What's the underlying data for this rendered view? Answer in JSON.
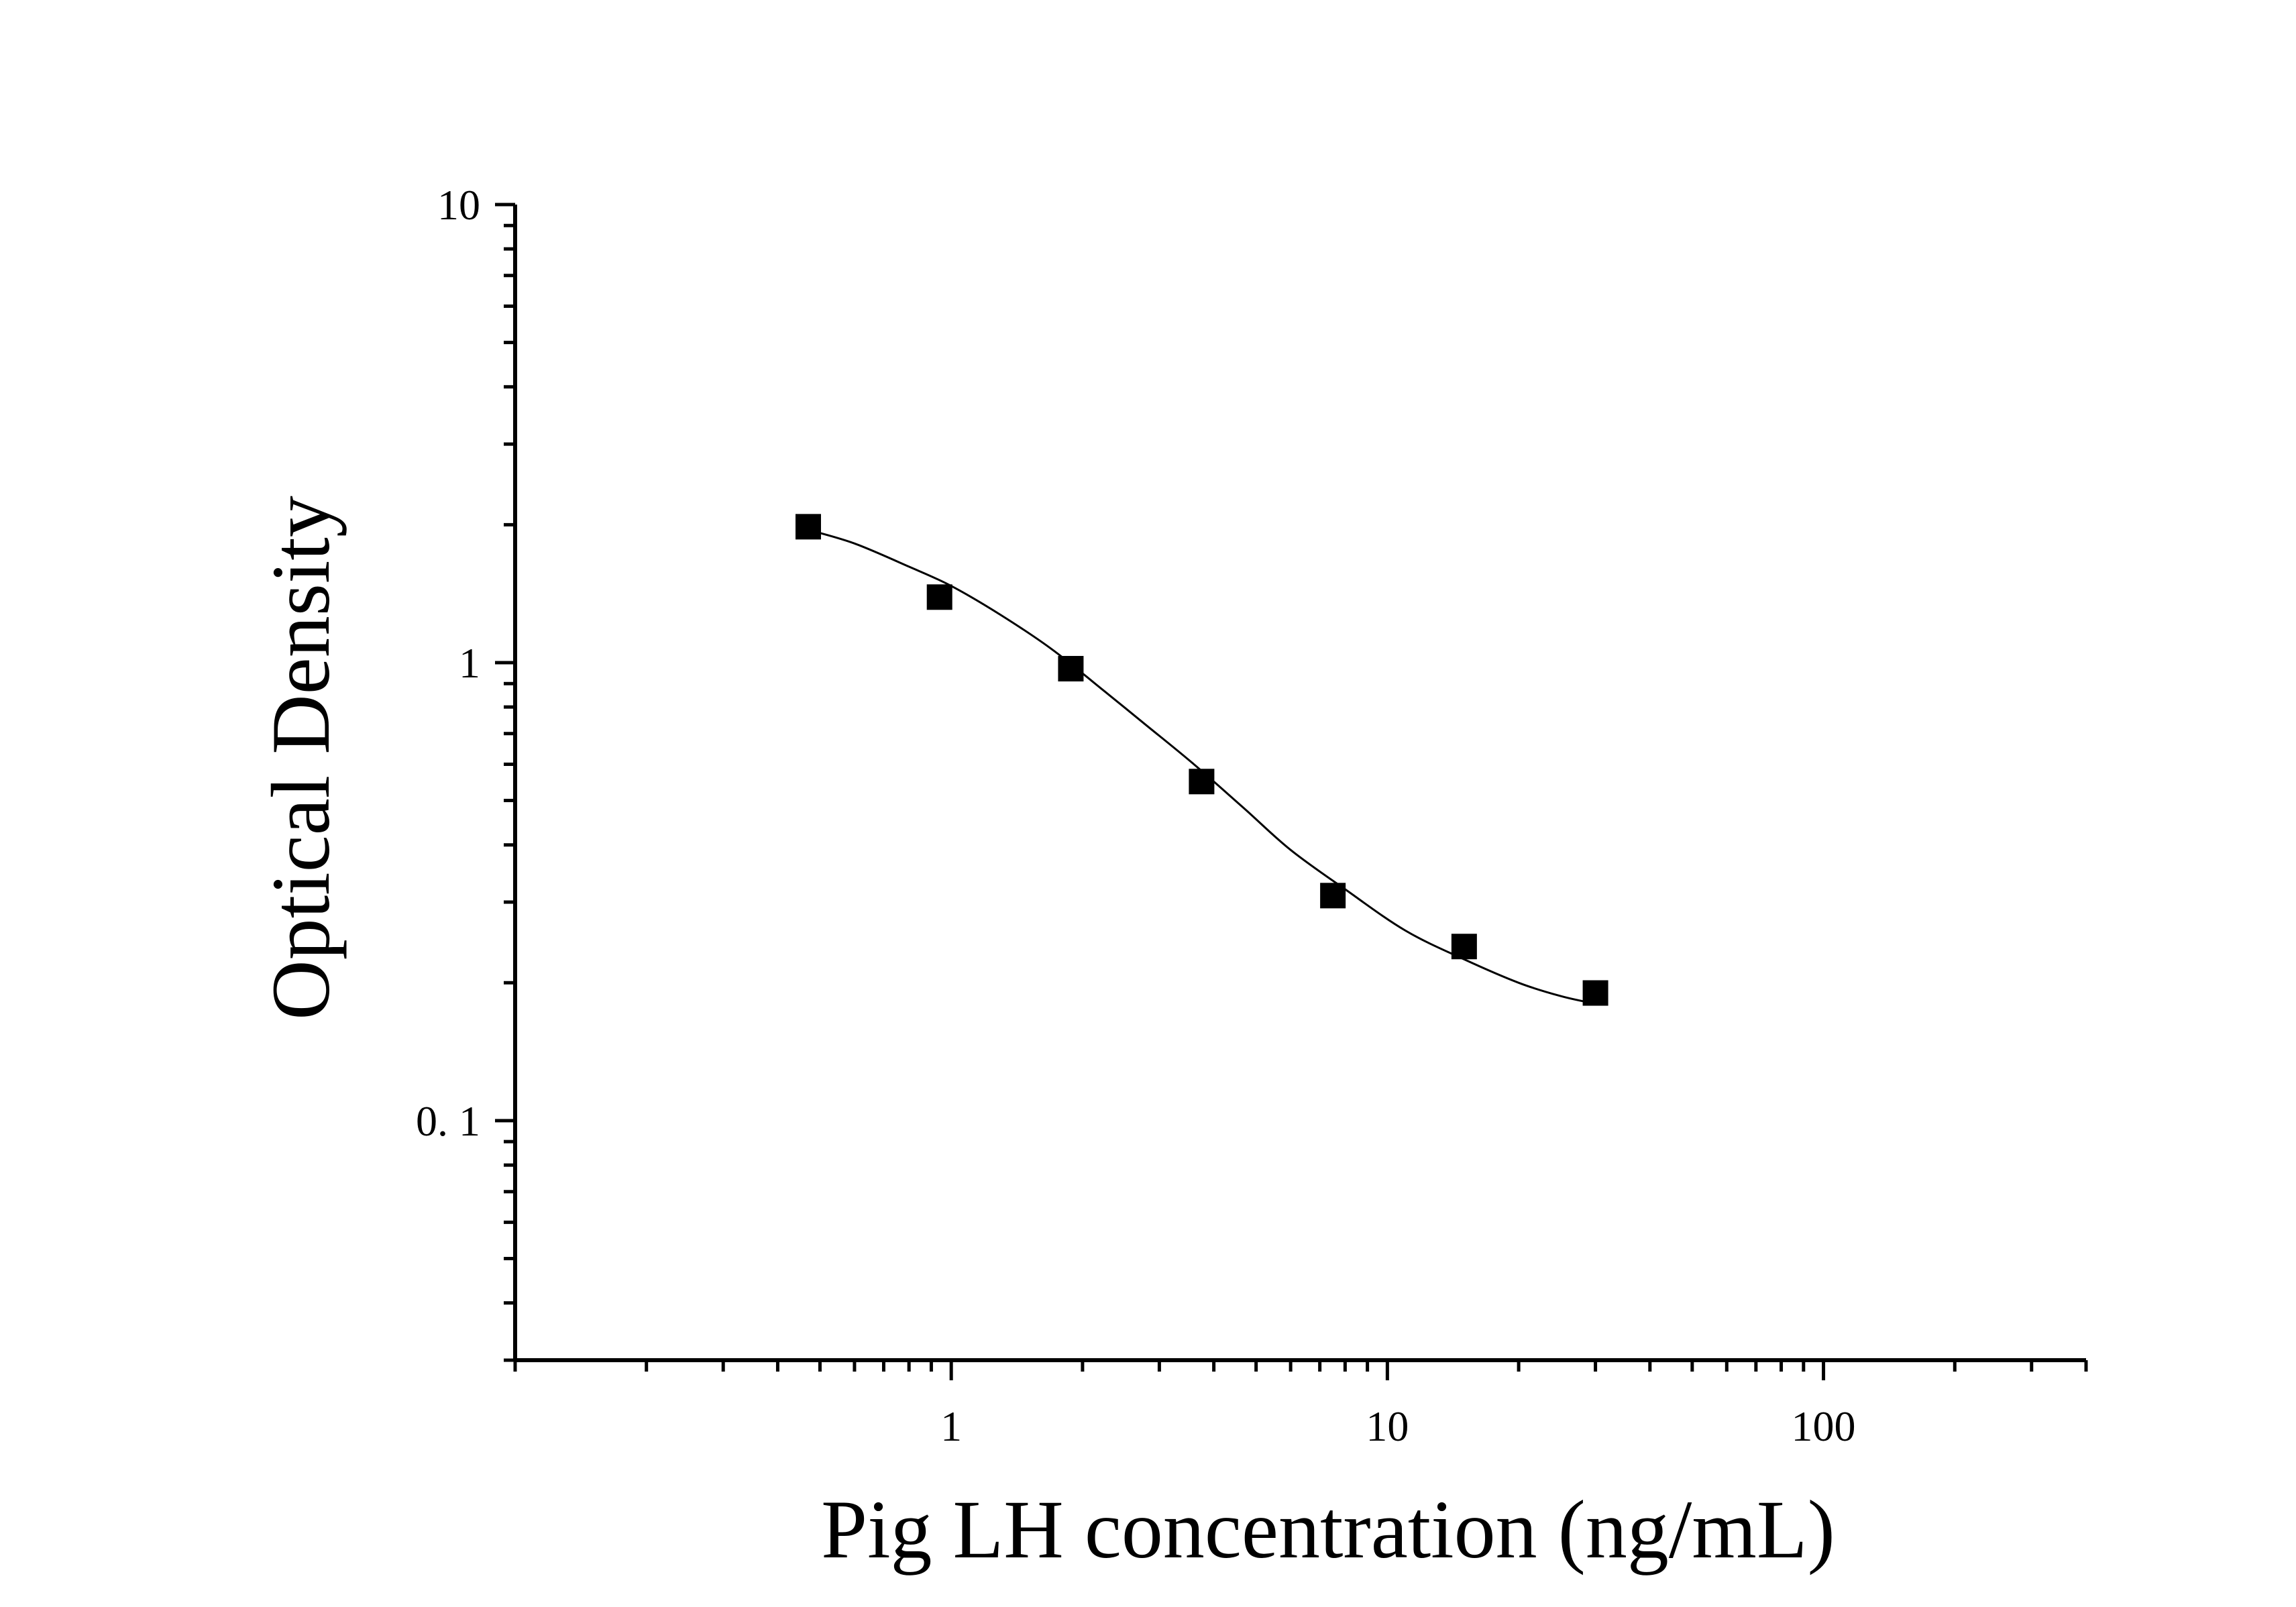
{
  "chart_data": {
    "type": "scatter",
    "title": "",
    "xlabel": "Pig LH concentration (ng/mL)",
    "ylabel": "Optical Density",
    "x_scale": "log",
    "y_scale": "log",
    "xlim": [
      0.1,
      400
    ],
    "ylim": [
      0.03,
      10
    ],
    "x_ticks": [
      {
        "value": 1,
        "label": "1"
      },
      {
        "value": 10,
        "label": "10"
      },
      {
        "value": 100,
        "label": "100"
      }
    ],
    "y_ticks": [
      {
        "value": 0.1,
        "label": "0. 1"
      },
      {
        "value": 1,
        "label": "1"
      },
      {
        "value": 10,
        "label": "10"
      }
    ],
    "grid": false,
    "legend": null,
    "series": [
      {
        "marker": "square",
        "color": "#000000",
        "points": [
          {
            "x": 0.47,
            "y": 1.98
          },
          {
            "x": 0.94,
            "y": 1.39
          },
          {
            "x": 1.88,
            "y": 0.97
          },
          {
            "x": 3.75,
            "y": 0.55
          },
          {
            "x": 7.5,
            "y": 0.31
          },
          {
            "x": 15,
            "y": 0.24
          },
          {
            "x": 30,
            "y": 0.19
          }
        ]
      }
    ],
    "fit_curve": {
      "type": "four-parameter logistic",
      "color": "#000000",
      "x_range": [
        0.47,
        30
      ],
      "points": [
        {
          "x": 0.47,
          "y": 1.95
        },
        {
          "x": 0.6,
          "y": 1.82
        },
        {
          "x": 0.8,
          "y": 1.62
        },
        {
          "x": 1.0,
          "y": 1.47
        },
        {
          "x": 1.3,
          "y": 1.27
        },
        {
          "x": 1.7,
          "y": 1.07
        },
        {
          "x": 2.2,
          "y": 0.88
        },
        {
          "x": 2.8,
          "y": 0.73
        },
        {
          "x": 3.6,
          "y": 0.6
        },
        {
          "x": 4.7,
          "y": 0.48
        },
        {
          "x": 6.0,
          "y": 0.39
        },
        {
          "x": 8.0,
          "y": 0.32
        },
        {
          "x": 11,
          "y": 0.26
        },
        {
          "x": 15,
          "y": 0.225
        },
        {
          "x": 20,
          "y": 0.2
        },
        {
          "x": 25,
          "y": 0.187
        },
        {
          "x": 30,
          "y": 0.18
        }
      ]
    }
  }
}
